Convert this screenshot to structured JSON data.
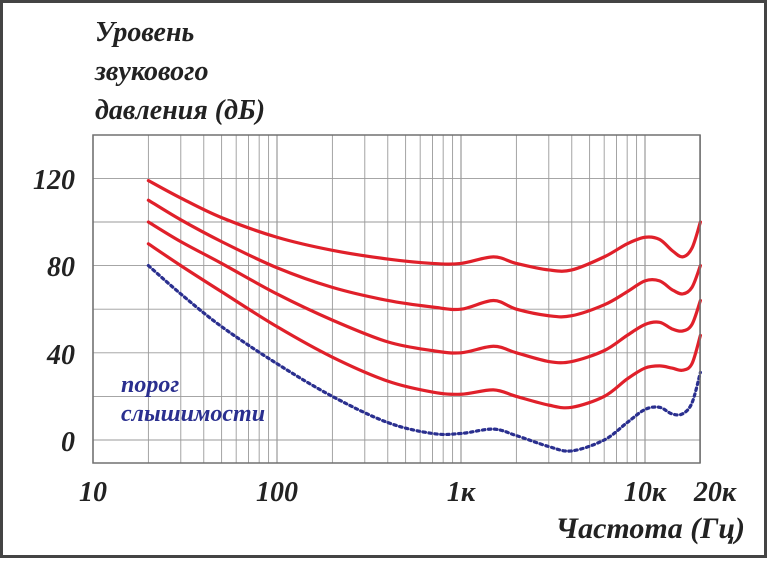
{
  "chart_data": {
    "type": "line",
    "title": "",
    "ylabel_lines": [
      "Уровень",
      "звукового",
      "давления (дБ)"
    ],
    "xlabel": "Частота (Гц)",
    "x_scale": "log",
    "xlim": [
      10,
      25000
    ],
    "ylim": [
      -10,
      140
    ],
    "grid": true,
    "legend": "none",
    "x_ticks": [
      {
        "value": 10,
        "label": "10"
      },
      {
        "value": 100,
        "label": "100"
      },
      {
        "value": 1000,
        "label": "1к"
      },
      {
        "value": 10000,
        "label": "10к"
      },
      {
        "value": 20000,
        "label": "20к"
      }
    ],
    "y_ticks": [
      {
        "value": 0,
        "label": "0"
      },
      {
        "value": 40,
        "label": "40"
      },
      {
        "value": 80,
        "label": "80"
      },
      {
        "value": 120,
        "label": "120"
      }
    ],
    "annotation_lines": [
      "порог",
      "слышимости"
    ],
    "colors": {
      "curve": "#e0202a",
      "threshold": "#2a2f8f",
      "grid": "#9a9a9a",
      "axis_text": "#222222"
    },
    "series": [
      {
        "style": "solid",
        "x": [
          20,
          30,
          50,
          100,
          200,
          400,
          700,
          1000,
          1500,
          2000,
          3000,
          4000,
          6000,
          8000,
          10000,
          12000,
          14000,
          16000,
          18000,
          20000
        ],
        "y": [
          119,
          111,
          102,
          93,
          87,
          83,
          81,
          81,
          84,
          81,
          78,
          78,
          84,
          90,
          93,
          92,
          87,
          84,
          88,
          100
        ]
      },
      {
        "style": "solid",
        "x": [
          20,
          30,
          50,
          100,
          200,
          400,
          700,
          1000,
          1500,
          2000,
          3000,
          4000,
          6000,
          8000,
          10000,
          12000,
          14000,
          16000,
          18000,
          20000
        ],
        "y": [
          110,
          101,
          91,
          79,
          70,
          64,
          61,
          60,
          64,
          60,
          57,
          57,
          62,
          68,
          73,
          73,
          69,
          67,
          70,
          80
        ]
      },
      {
        "style": "solid",
        "x": [
          20,
          30,
          50,
          100,
          200,
          400,
          700,
          1000,
          1500,
          2000,
          3000,
          4000,
          6000,
          8000,
          10000,
          12000,
          14000,
          16000,
          18000,
          20000
        ],
        "y": [
          100,
          91,
          81,
          67,
          55,
          45,
          41,
          40,
          43,
          40,
          36,
          36,
          41,
          48,
          53,
          54,
          51,
          50,
          53,
          64
        ]
      },
      {
        "style": "solid",
        "x": [
          20,
          30,
          50,
          100,
          200,
          400,
          700,
          1000,
          1500,
          2000,
          3000,
          4000,
          6000,
          8000,
          10000,
          12000,
          14000,
          16000,
          18000,
          20000
        ],
        "y": [
          90,
          80,
          68,
          52,
          38,
          27,
          22,
          21,
          23,
          20,
          16,
          15,
          20,
          28,
          33,
          34,
          33,
          32,
          35,
          48
        ]
      },
      {
        "style": "dotted",
        "x": [
          20,
          30,
          50,
          100,
          200,
          400,
          700,
          1000,
          1500,
          2000,
          3000,
          4000,
          6000,
          8000,
          10000,
          12000,
          14000,
          16000,
          18000,
          20000
        ],
        "y": [
          80,
          67,
          52,
          35,
          20,
          8,
          3,
          3,
          5,
          2,
          -3,
          -5,
          0,
          8,
          14,
          15,
          12,
          12,
          17,
          31
        ]
      }
    ]
  }
}
